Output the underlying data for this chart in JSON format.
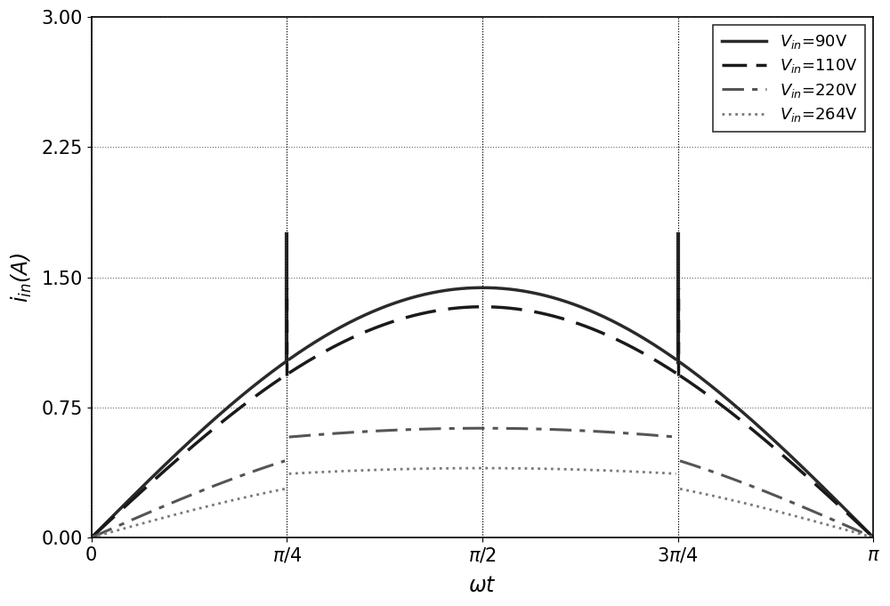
{
  "xlabel": "$\\omega t$",
  "ylabel": "$i_{in}$(A)",
  "xlim": [
    0.0,
    3.14159265358979
  ],
  "ylim": [
    0.0,
    3.0
  ],
  "yticks": [
    0.0,
    0.75,
    1.5,
    2.25,
    3.0
  ],
  "ytick_labels": [
    "0.00",
    "0.75",
    "1.50",
    "2.25",
    "3.00"
  ],
  "xtick_vals": [
    0.0,
    0.7853981633974483,
    1.5707963267948966,
    2.356194490192345,
    3.14159265358979
  ],
  "xtick_labels": [
    "0",
    "$\\pi/4$",
    "$\\pi/2$",
    "$3\\pi/4$",
    "$\\pi$"
  ],
  "seg1": 0.7853981633974483,
  "seg3": 2.356194490192345,
  "A90": 1.44,
  "spike90": 1.75,
  "A110": 1.33,
  "spike110": 1.44,
  "A220": 0.63,
  "A264": 0.4,
  "c90": "#2a2a2a",
  "c110": "#1a1a1a",
  "c220": "#555555",
  "c264": "#7a7a7a",
  "lw90": 2.5,
  "lw110": 2.5,
  "lw220": 2.2,
  "lw264": 2.0,
  "legend_labels": [
    "$V_{in}$=90V",
    "$V_{in}$=110V",
    "$V_{in}$=220V",
    "$V_{in}$=264V"
  ],
  "grid_color": "#000000",
  "grid_alpha": 0.6,
  "fig_width": 10.0,
  "fig_height": 6.81
}
